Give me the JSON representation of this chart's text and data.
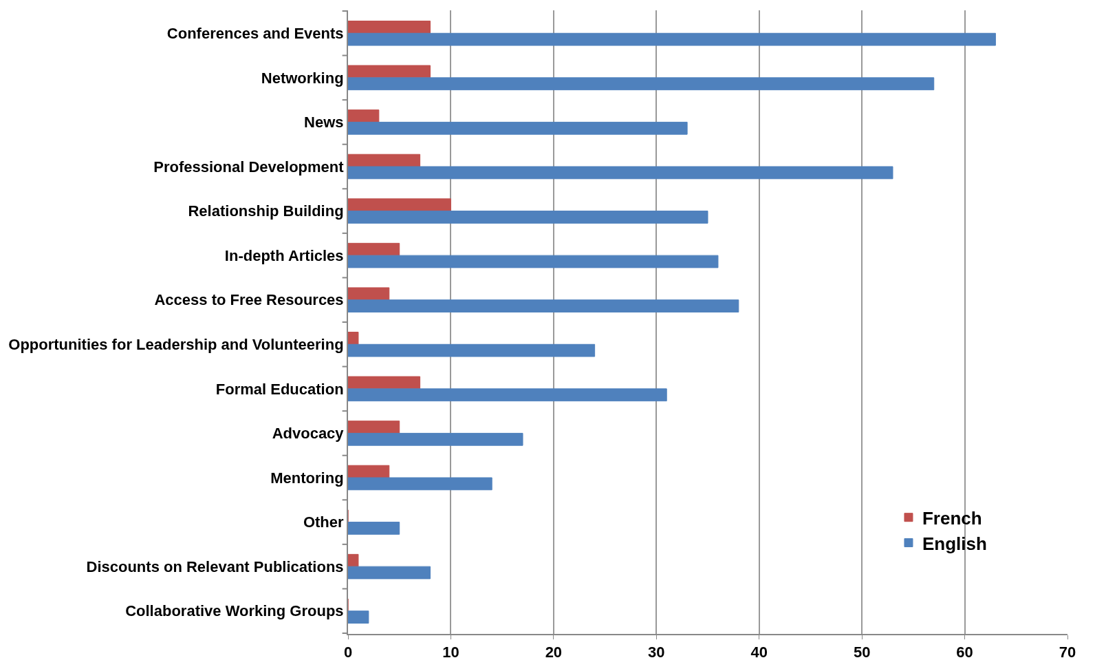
{
  "chart_data": {
    "type": "bar",
    "orientation": "horizontal",
    "categories": [
      "Conferences and Events",
      "Networking",
      "News",
      "Professional Development",
      "Relationship Building",
      "In-depth Articles",
      "Access to Free Resources",
      "Opportunities for Leadership and Volunteering",
      "Formal Education",
      "Advocacy",
      "Mentoring",
      "Other",
      "Discounts on Relevant Publications",
      "Collaborative Working Groups"
    ],
    "series": [
      {
        "name": "French",
        "color": "#c0504d",
        "values": [
          8,
          8,
          3,
          7,
          10,
          5,
          4,
          1,
          7,
          5,
          4,
          0,
          1,
          0
        ]
      },
      {
        "name": "English",
        "color": "#4f81bd",
        "values": [
          63,
          57,
          33,
          53,
          35,
          36,
          38,
          24,
          31,
          17,
          14,
          5,
          8,
          2
        ]
      }
    ],
    "xlim": [
      0,
      70
    ],
    "xticks": [
      0,
      10,
      20,
      30,
      40,
      50,
      60,
      70
    ],
    "grid": "x",
    "legend": "bottom right"
  }
}
